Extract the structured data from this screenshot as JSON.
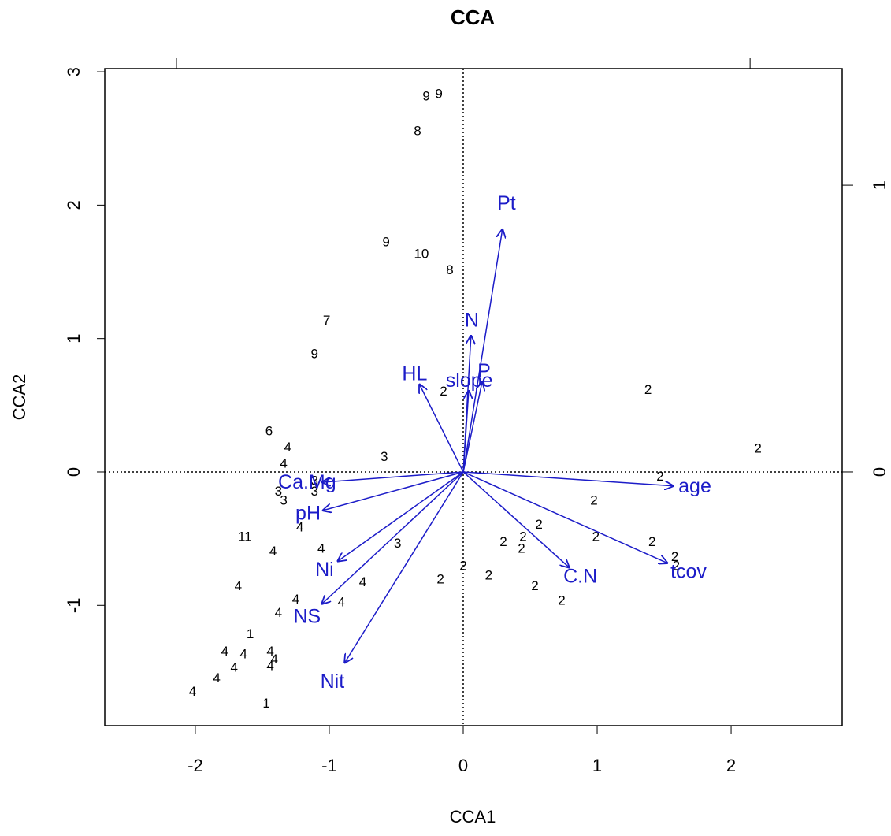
{
  "chart_data": {
    "type": "biplot",
    "title": "CCA",
    "xlabel": "CCA1",
    "ylabel": "CCA2",
    "xlim": [
      -2.676,
      2.829
    ],
    "ylim": [
      -1.902,
      3.024
    ],
    "xticks": [
      -2,
      -1,
      0,
      1,
      2
    ],
    "yticks": [
      -1,
      0,
      1,
      2,
      3
    ],
    "x2lim": [
      -1.25,
      1.321
    ],
    "x2ticks": [
      -1,
      1
    ],
    "y2lim": [
      -0.885,
      1.407
    ],
    "y2ticks": [
      0,
      1
    ],
    "sites": {
      "color": "#000000",
      "labels": [
        "9",
        "9",
        "8",
        "9",
        "10",
        "8",
        "7",
        "9",
        "2",
        "2",
        "2",
        "6",
        "4",
        "4",
        "3",
        "3",
        "3",
        "3",
        "3",
        "2",
        "2",
        "4",
        "11",
        "4",
        "4",
        "3",
        "2",
        "2",
        "2",
        "2",
        "2",
        "2",
        "2",
        "2",
        "2",
        "2",
        "2",
        "2",
        "2",
        "4",
        "4",
        "4",
        "4",
        "4",
        "1",
        "4",
        "4",
        "4",
        "4",
        "4",
        "4",
        "4",
        "4",
        "1"
      ],
      "x": [
        -0.276,
        -0.182,
        -0.341,
        -0.576,
        -0.312,
        -0.1,
        -1.02,
        -1.11,
        -0.147,
        1.38,
        2.2,
        -1.45,
        -1.31,
        -1.34,
        -0.59,
        -1.11,
        -1.38,
        -1.34,
        -1.11,
        1.47,
        0.976,
        -1.22,
        -1.63,
        -1.42,
        -1.06,
        -0.49,
        0.565,
        0.447,
        0.3,
        0.435,
        0.99,
        1.41,
        1.58,
        1.59,
        0.0,
        0.19,
        -0.17,
        0.535,
        0.735,
        -1.68,
        -0.75,
        -1.25,
        -0.91,
        -1.38,
        -1.59,
        -1.78,
        -1.64,
        -1.44,
        -1.41,
        -1.44,
        -1.71,
        -1.84,
        -2.02,
        -1.47
      ],
      "y": [
        2.81,
        2.83,
        2.55,
        1.72,
        1.63,
        1.51,
        1.13,
        0.88,
        0.6,
        0.61,
        0.17,
        0.3,
        0.18,
        0.06,
        0.11,
        -0.07,
        -0.15,
        -0.22,
        -0.15,
        -0.04,
        -0.22,
        -0.42,
        -0.49,
        -0.6,
        -0.58,
        -0.54,
        -0.4,
        -0.49,
        -0.53,
        -0.58,
        -0.49,
        -0.53,
        -0.64,
        -0.71,
        -0.71,
        -0.78,
        -0.81,
        -0.86,
        -0.97,
        -0.86,
        -0.83,
        -0.96,
        -0.98,
        -1.06,
        -1.22,
        -1.35,
        -1.37,
        -1.35,
        -1.41,
        -1.46,
        -1.47,
        -1.55,
        -1.65,
        -1.74
      ]
    },
    "arrows": {
      "color": "#1c1cc8",
      "names": [
        "Pt",
        "N",
        "HL",
        "slope",
        "P",
        "age",
        "tcov",
        "C.N",
        "Ca.Mg",
        "pH",
        "Ni",
        "NS",
        "Nit"
      ],
      "x": [
        0.137,
        0.027,
        -0.154,
        0.019,
        0.066,
        0.734,
        0.714,
        0.371,
        -0.495,
        -0.492,
        -0.44,
        -0.495,
        -0.415
      ],
      "y": [
        0.849,
        0.478,
        0.308,
        0.286,
        0.316,
        -0.049,
        -0.319,
        -0.335,
        -0.036,
        -0.135,
        -0.313,
        -0.462,
        -0.668
      ]
    }
  }
}
